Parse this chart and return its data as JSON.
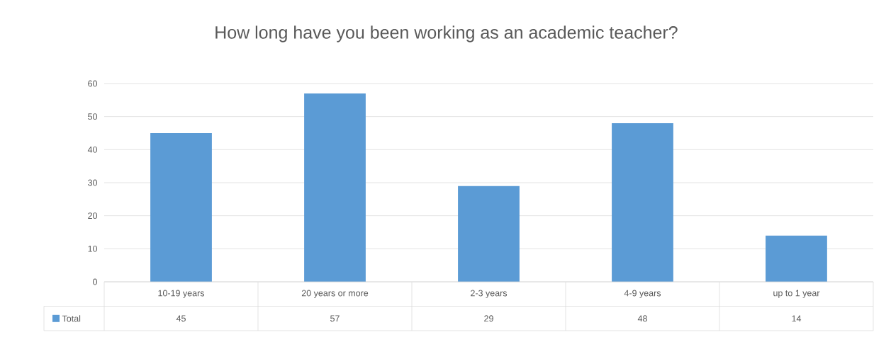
{
  "chart_data": {
    "type": "bar",
    "title": "How long have you been working as an academic teacher?",
    "categories": [
      "10-19 years",
      "20 years or more",
      "2-3 years",
      "4-9 years",
      "up to 1 year"
    ],
    "series": [
      {
        "name": "Total",
        "color": "#5b9bd5",
        "values": [
          45,
          57,
          29,
          48,
          14
        ]
      }
    ],
    "ylim": [
      0,
      60
    ],
    "yticks": [
      0,
      10,
      20,
      30,
      40,
      50,
      60
    ],
    "grid": "y",
    "data_labels": true,
    "legend": "bottom"
  }
}
